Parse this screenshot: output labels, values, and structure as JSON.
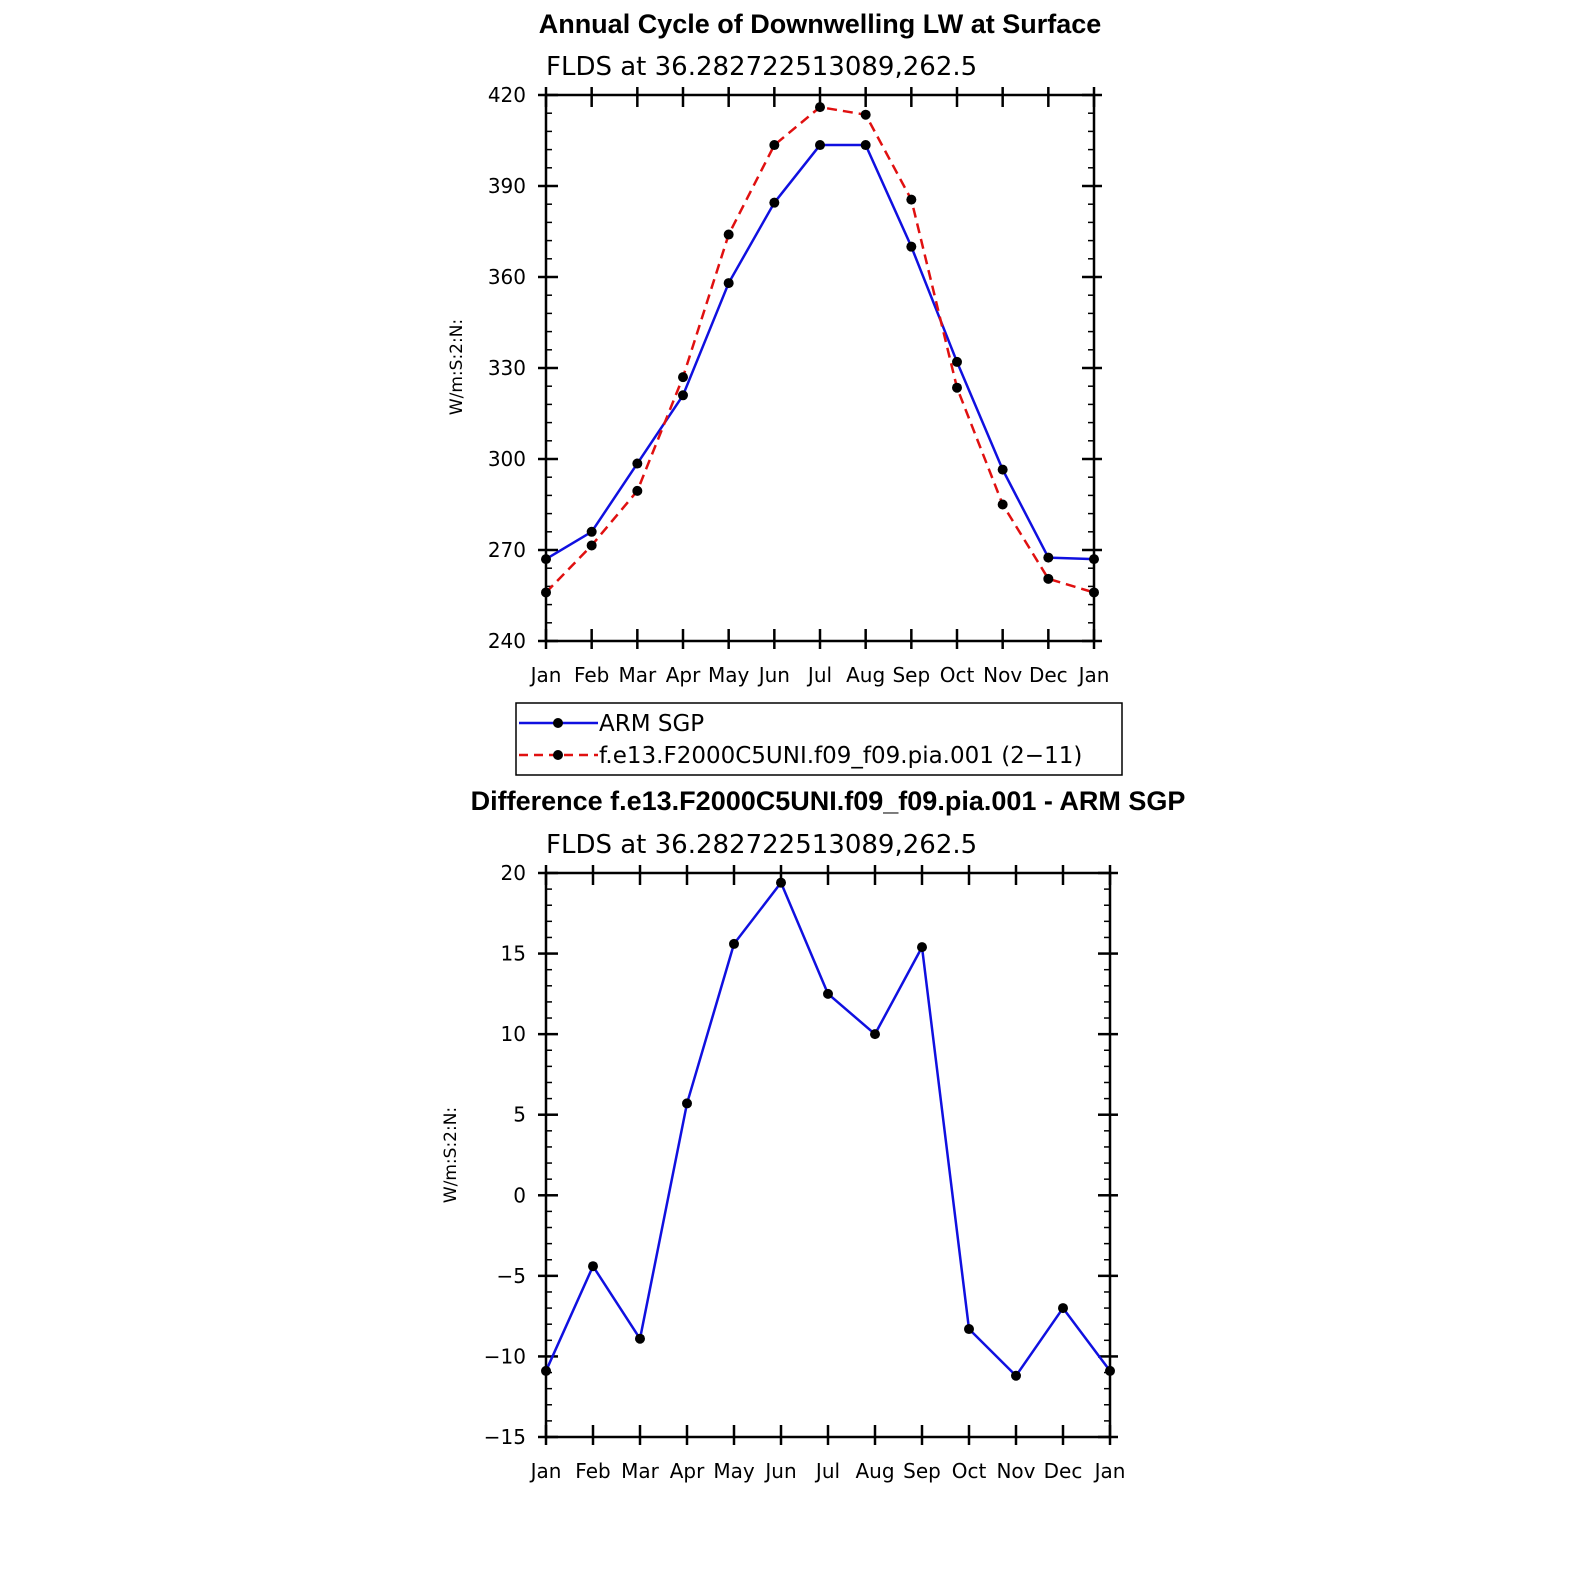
{
  "chart_data": [
    {
      "type": "line",
      "title": "Annual Cycle of Downwelling LW at Surface",
      "subtitle": "FLDS at 36.282722513089,262.5",
      "ylabel": "W/m:S:2:N:",
      "xlabel": "",
      "categories": [
        "Jan",
        "Feb",
        "Mar",
        "Apr",
        "May",
        "Jun",
        "Jul",
        "Aug",
        "Sep",
        "Oct",
        "Nov",
        "Dec",
        "Jan"
      ],
      "ylim": [
        240,
        420
      ],
      "yticks": [
        "240",
        "270",
        "300",
        "330",
        "360",
        "390",
        "420"
      ],
      "series": [
        {
          "name": "ARM SGP",
          "color": "#1010e0",
          "dash": "solid",
          "values": [
            267,
            276,
            298.5,
            321,
            358,
            384.5,
            403.5,
            403.5,
            370,
            332,
            296.5,
            267.5,
            267
          ]
        },
        {
          "name": "f.e13.F2000C5UNI.f09_f09.pia.001 (2−11)",
          "color": "#e01010",
          "dash": "dashed",
          "values": [
            256,
            271.5,
            289.5,
            327,
            374,
            403.5,
            416,
            413.5,
            385.5,
            323.5,
            285,
            260.5,
            256
          ]
        }
      ],
      "legend": {
        "position": "below",
        "entries": [
          "ARM SGP",
          "f.e13.F2000C5UNI.f09_f09.pia.001 (2−11)"
        ]
      }
    },
    {
      "type": "line",
      "title": "Difference f.e13.F2000C5UNI.f09_f09.pia.001 - ARM SGP",
      "subtitle": "FLDS at 36.282722513089,262.5",
      "ylabel": "W/m:S:2:N:",
      "xlabel": "",
      "categories": [
        "Jan",
        "Feb",
        "Mar",
        "Apr",
        "May",
        "Jun",
        "Jul",
        "Aug",
        "Sep",
        "Oct",
        "Nov",
        "Dec",
        "Jan"
      ],
      "ylim": [
        -15,
        20
      ],
      "yticks": [
        "−15",
        "−10",
        "−5",
        "0",
        "5",
        "10",
        "15",
        "20"
      ],
      "series": [
        {
          "name": "Difference",
          "color": "#1010e0",
          "dash": "solid",
          "values": [
            -10.9,
            -4.4,
            -8.9,
            5.7,
            15.6,
            19.4,
            12.5,
            10.0,
            15.4,
            -8.3,
            -11.2,
            -7.0,
            -10.9
          ]
        }
      ]
    }
  ]
}
